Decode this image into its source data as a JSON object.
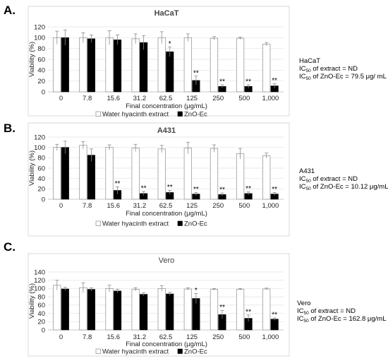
{
  "panels": [
    {
      "letter": "A.",
      "title": "HaCaT",
      "title_bold": true,
      "note_cell": "HaCaT",
      "note_line1_pre": "IC",
      "note_line1_sub": "50",
      "note_line1_post": " of extract = ND",
      "note_line2_pre": "IC",
      "note_line2_sub": "50",
      "note_line2_post": " of ZnO-Ec = 79.5 μg/ mL"
    },
    {
      "letter": "B.",
      "title": "A431",
      "title_bold": true,
      "note_cell": "A431",
      "note_line1_pre": "IC",
      "note_line1_sub": "50",
      "note_line1_post": " of extract = ND",
      "note_line2_pre": "IC",
      "note_line2_sub": "50",
      "note_line2_post": " of ZnO-Ec = 10.12 μg/mL"
    },
    {
      "letter": "C.",
      "title": "Vero",
      "title_bold": false,
      "note_cell": "Vero",
      "note_line1_pre": "IC",
      "note_line1_sub": "50",
      "note_line1_post": " of extract = ND",
      "note_line2_pre": "IC",
      "note_line2_sub": "50",
      "note_line2_post": " of ZnO-Ec = 162.8 μg/mL"
    }
  ],
  "chart_data": [
    {
      "type": "bar",
      "title": "HaCaT",
      "xlabel": "Final concentration (μg/mL)",
      "ylabel": "Viability (%)",
      "ylim": [
        0,
        120
      ],
      "yticks": [
        0,
        20,
        40,
        60,
        80,
        100,
        120
      ],
      "grid": true,
      "legend": "bottom",
      "categories": [
        "0",
        "7.8",
        "15.6",
        "31.2",
        "62.5",
        "125",
        "250",
        "500",
        "1,000"
      ],
      "series": [
        {
          "name": "Water hyacinth extract",
          "color": "#ffffff",
          "values": [
            100,
            100,
            100,
            98,
            100,
            100,
            99,
            99,
            88
          ],
          "errors": [
            12,
            9,
            13,
            9,
            11,
            7,
            3,
            2,
            3
          ],
          "significance": [
            "",
            "",
            "",
            "",
            "",
            "",
            "",
            "",
            ""
          ]
        },
        {
          "name": "ZnO-Ec",
          "color": "#000000",
          "values": [
            100,
            98,
            96,
            91,
            74,
            21,
            10,
            10,
            11
          ],
          "errors": [
            14,
            7,
            9,
            13,
            9,
            8,
            3,
            3,
            4
          ],
          "significance": [
            "",
            "",
            "",
            "",
            "*",
            "**",
            "**",
            "**",
            "**"
          ]
        }
      ]
    },
    {
      "type": "bar",
      "title": "A431",
      "xlabel": "Final concentration (μg/mL)",
      "ylabel": "Viability (%)",
      "ylim": [
        0,
        120
      ],
      "yticks": [
        0,
        20,
        40,
        60,
        80,
        100,
        120
      ],
      "grid": true,
      "legend": "bottom",
      "categories": [
        "0",
        "7.8",
        "15.6",
        "31.2",
        "62.5",
        "125",
        "250",
        "500",
        "1,000"
      ],
      "series": [
        {
          "name": "Water hyacinth extract",
          "color": "#ffffff",
          "values": [
            100,
            104,
            100,
            99,
            97,
            99,
            98,
            88,
            84
          ],
          "errors": [
            6,
            7,
            5,
            7,
            7,
            11,
            7,
            10,
            5
          ],
          "significance": [
            "",
            "",
            "",
            "",
            "",
            "",
            "",
            "",
            ""
          ]
        },
        {
          "name": "ZnO-Ec",
          "color": "#000000",
          "values": [
            100,
            85,
            17,
            11,
            13,
            10,
            9,
            11,
            10
          ],
          "errors": [
            12,
            12,
            7,
            4,
            4,
            3,
            3,
            3,
            3
          ],
          "significance": [
            "",
            "",
            "**",
            "**",
            "**",
            "**",
            "**",
            "**",
            "**"
          ]
        }
      ]
    },
    {
      "type": "bar",
      "title": "Vero",
      "xlabel": "Final concentration (μg/mL)",
      "ylabel": "Viability (%)",
      "ylim": [
        0,
        140
      ],
      "yticks": [
        0,
        20,
        40,
        60,
        80,
        100,
        120,
        140
      ],
      "grid": true,
      "legend": "bottom",
      "categories": [
        "0",
        "7.8",
        "15.6",
        "31.2",
        "62.5",
        "125",
        "250",
        "500",
        "1,000"
      ],
      "series": [
        {
          "name": "Water hyacinth extract",
          "color": "#ffffff",
          "values": [
            108,
            102,
            100,
            98,
            100,
            99,
            98,
            98,
            99
          ],
          "errors": [
            12,
            12,
            8,
            4,
            7,
            3,
            2,
            2,
            2
          ],
          "significance": [
            "",
            "",
            "",
            "",
            "",
            "",
            "",
            "",
            ""
          ]
        },
        {
          "name": "ZnO-Ec",
          "color": "#000000",
          "values": [
            99,
            98,
            94,
            86,
            87,
            76,
            37,
            28,
            26
          ],
          "errors": [
            4,
            4,
            4,
            4,
            4,
            12,
            10,
            8,
            3
          ],
          "significance": [
            "",
            "",
            "",
            "",
            "",
            "*",
            "**",
            "**",
            "**"
          ]
        }
      ]
    }
  ]
}
